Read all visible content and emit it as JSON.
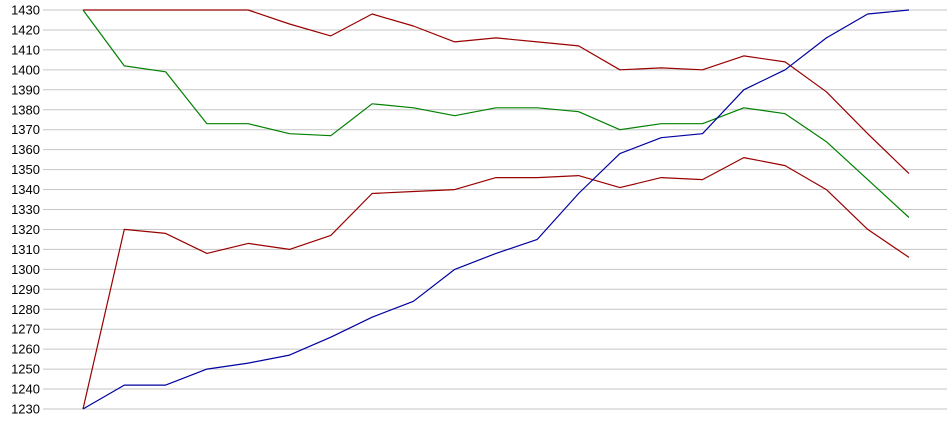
{
  "chart_data": {
    "type": "line",
    "title": "",
    "xlabel": "",
    "ylabel": "",
    "x_labels_visible": false,
    "point_count": 21,
    "grid": "horizontal",
    "legend": "none",
    "y_axis": {
      "min": 1230,
      "max": 1430,
      "step": 10,
      "tick_labels": [
        "1430",
        "1420",
        "1410",
        "1400",
        "1390",
        "1380",
        "1370",
        "1360",
        "1350",
        "1340",
        "1330",
        "1320",
        "1310",
        "1300",
        "1290",
        "1280",
        "1270",
        "1260",
        "1250",
        "1240",
        "1230"
      ]
    },
    "series": [
      {
        "name": "upper-red",
        "color": "#990000",
        "values": [
          1430,
          1430,
          1430,
          1430,
          1430,
          1423,
          1417,
          1428,
          1422,
          1414,
          1416,
          1414,
          1412,
          1400,
          1401,
          1400,
          1407,
          1404,
          1389,
          1368,
          1348
        ]
      },
      {
        "name": "green",
        "color": "#008000",
        "values": [
          1430,
          1402,
          1399,
          1373,
          1373,
          1368,
          1367,
          1383,
          1381,
          1377,
          1381,
          1381,
          1379,
          1370,
          1373,
          1373,
          1381,
          1378,
          1364,
          1345,
          1326
        ]
      },
      {
        "name": "lower-red",
        "color": "#990000",
        "values": [
          1230,
          1320,
          1318,
          1308,
          1313,
          1310,
          1317,
          1338,
          1339,
          1340,
          1346,
          1346,
          1347,
          1341,
          1346,
          1345,
          1356,
          1352,
          1340,
          1320,
          1306
        ]
      },
      {
        "name": "blue",
        "color": "#0000a0",
        "values": [
          1230,
          1242,
          1242,
          1250,
          1253,
          1257,
          1266,
          1276,
          1284,
          1300,
          1308,
          1315,
          1338,
          1358,
          1366,
          1368,
          1390,
          1400,
          1416,
          1428,
          1430
        ]
      }
    ]
  },
  "colors": {
    "background": "#ffffff",
    "gridline": "#c6c6c6",
    "tick_label": "#000000"
  }
}
